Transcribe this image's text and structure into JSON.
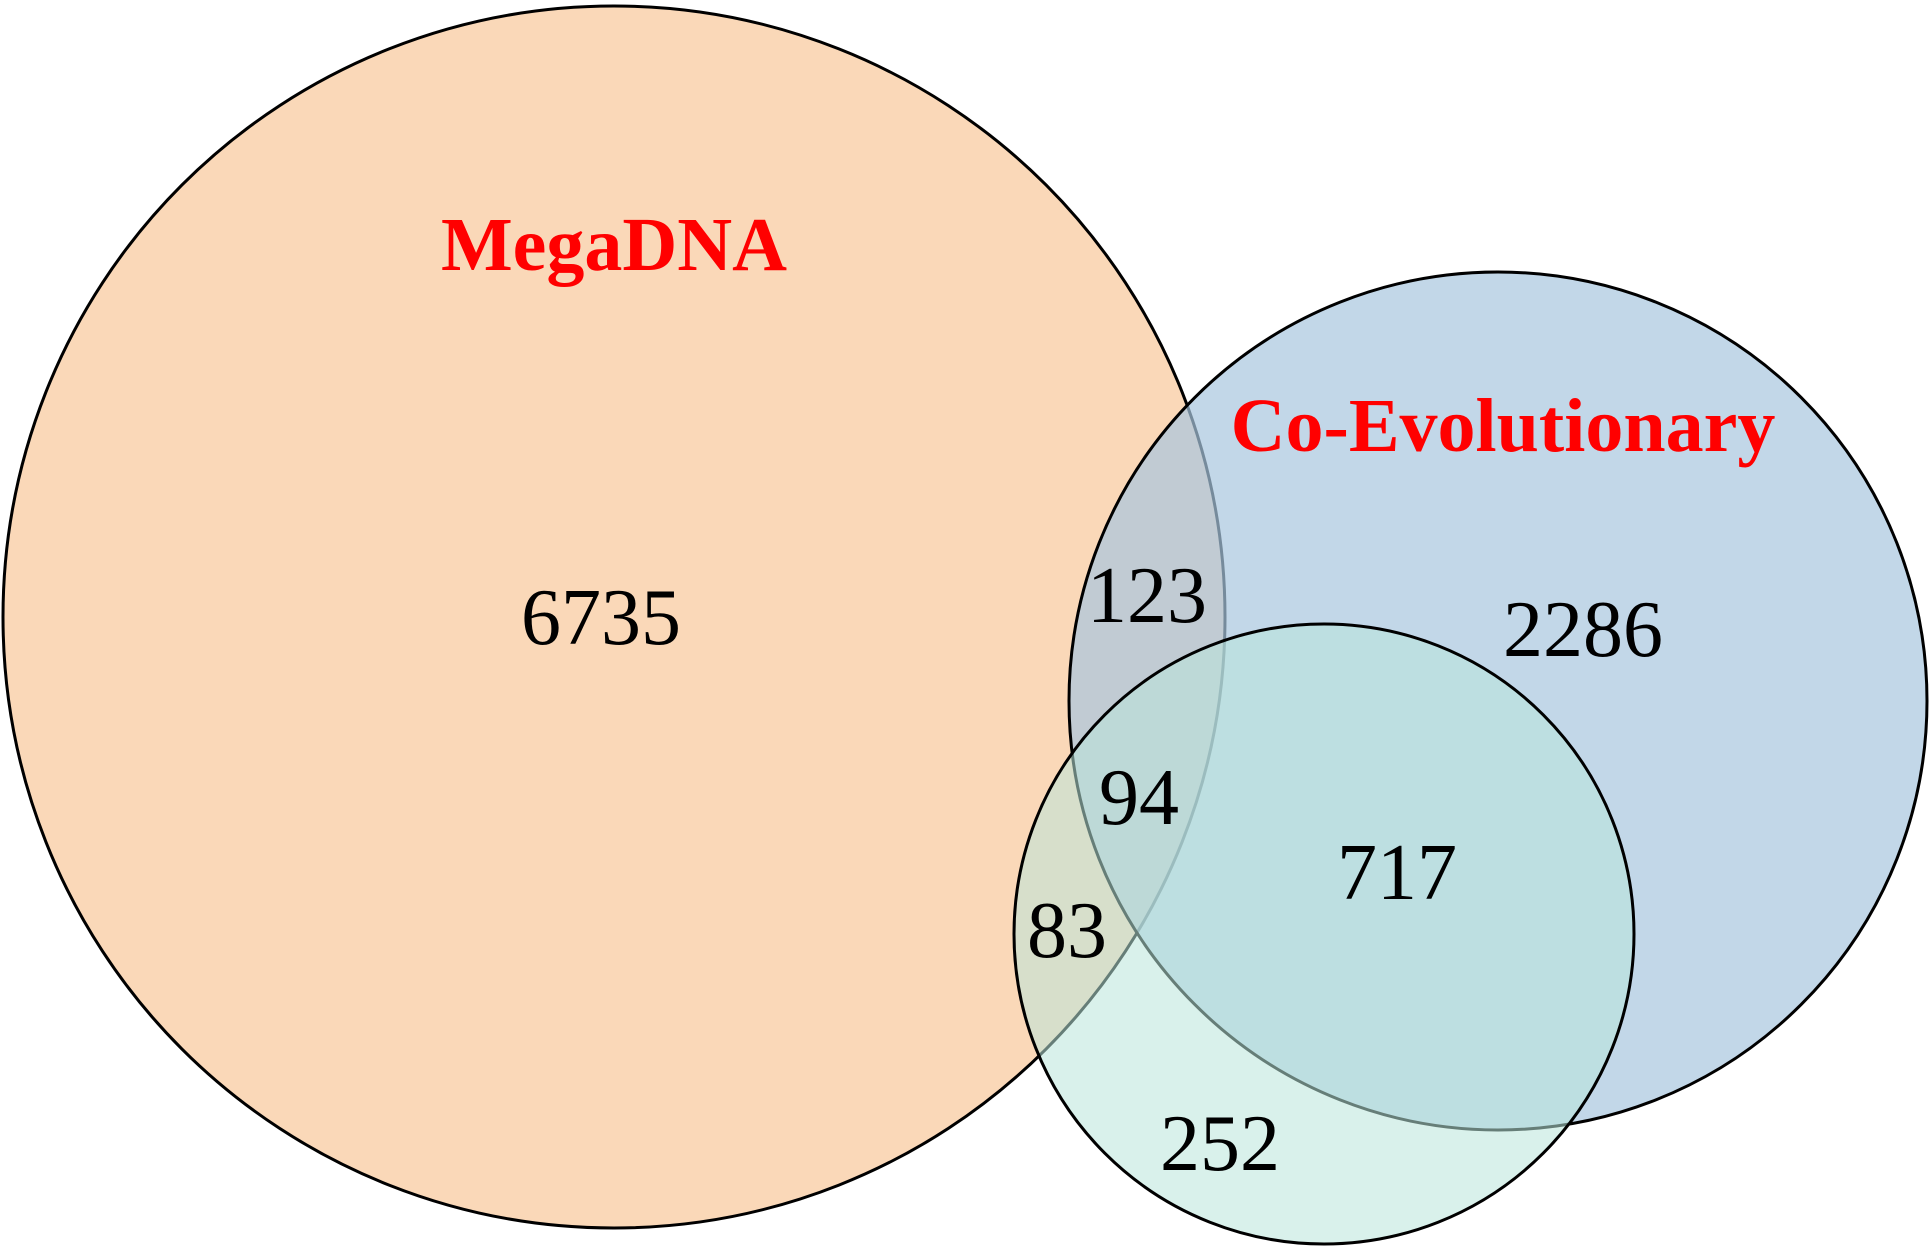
{
  "sets": {
    "megadna": {
      "label": "MegaDNA",
      "fill": "#F8C79A"
    },
    "coevo": {
      "label": "Co-Evolutionary",
      "fill": "#A8C6DE"
    },
    "third": {
      "fill": "#B9E6DA"
    }
  },
  "label_color": "#FF0000",
  "regions": {
    "megadna_only": "6735",
    "coevo_only": "2286",
    "third_only": "252",
    "megadna_coevo": "123",
    "megadna_coevo_third": "94",
    "megadna_third": "83",
    "coevo_third": "717"
  }
}
